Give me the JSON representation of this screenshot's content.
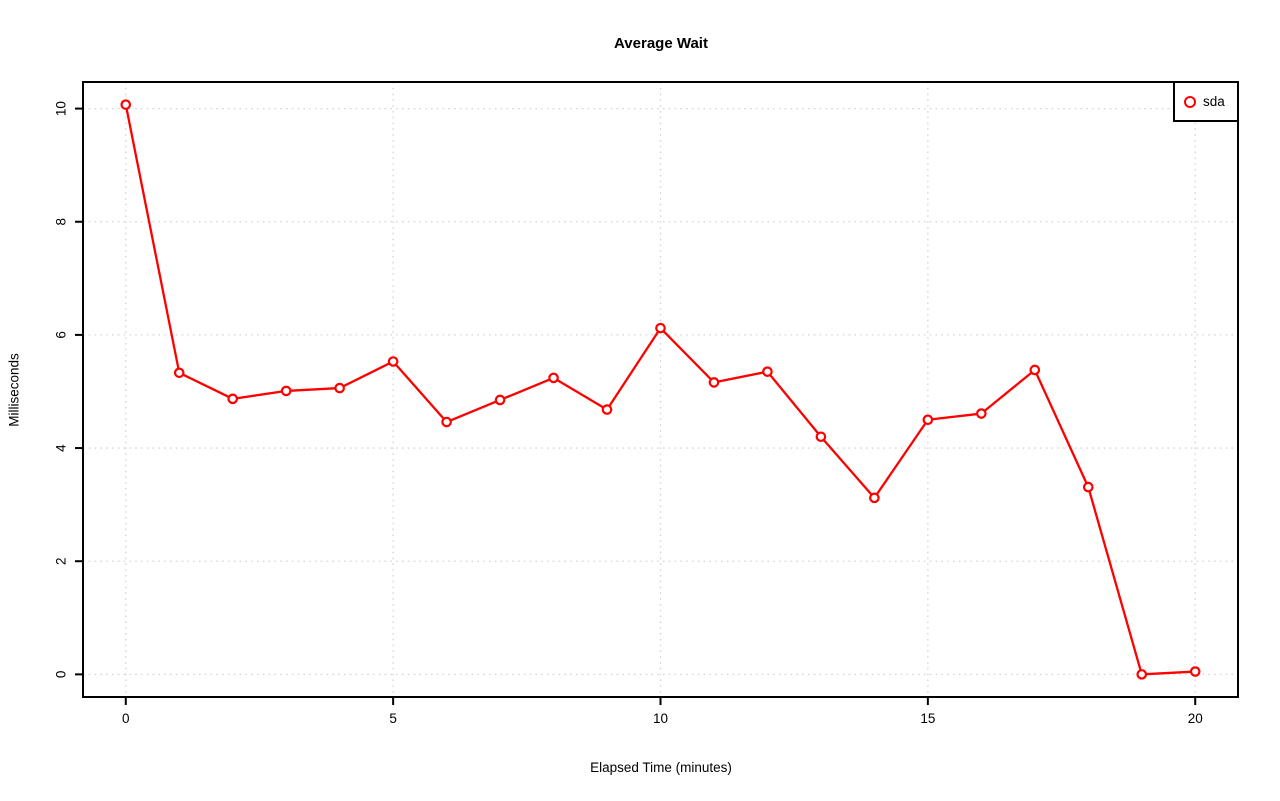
{
  "chart_data": {
    "type": "line",
    "title": "Average Wait",
    "xlabel": "Elapsed Time (minutes)",
    "ylabel": "Milliseconds",
    "x": [
      0,
      1,
      2,
      3,
      4,
      5,
      6,
      7,
      8,
      9,
      10,
      11,
      12,
      13,
      14,
      15,
      16,
      17,
      18,
      19,
      20
    ],
    "series": [
      {
        "name": "sda",
        "color": "#ff0000",
        "marker": "open-circle",
        "values": [
          10.07,
          5.33,
          4.87,
          5.01,
          5.06,
          5.53,
          4.46,
          4.85,
          5.24,
          4.68,
          6.12,
          5.16,
          5.35,
          4.2,
          3.12,
          4.5,
          4.61,
          5.38,
          3.31,
          0.0,
          0.05
        ]
      }
    ],
    "xticks": [
      0,
      5,
      10,
      15,
      20
    ],
    "yticks": [
      0,
      2,
      4,
      6,
      8,
      10
    ],
    "xlim": [
      -0.8,
      20.8
    ],
    "ylim": [
      -0.4,
      10.47
    ],
    "grid": {
      "show": true,
      "style": "dotted",
      "color": "#d4d4d4"
    },
    "legend": {
      "position": "topright",
      "entries": [
        {
          "label": "sda",
          "color": "#ff0000",
          "marker": "open-circle"
        }
      ]
    },
    "colors": {
      "line": "#ff0000",
      "axis": "#000000",
      "text": "#000000",
      "background": "#ffffff"
    }
  }
}
